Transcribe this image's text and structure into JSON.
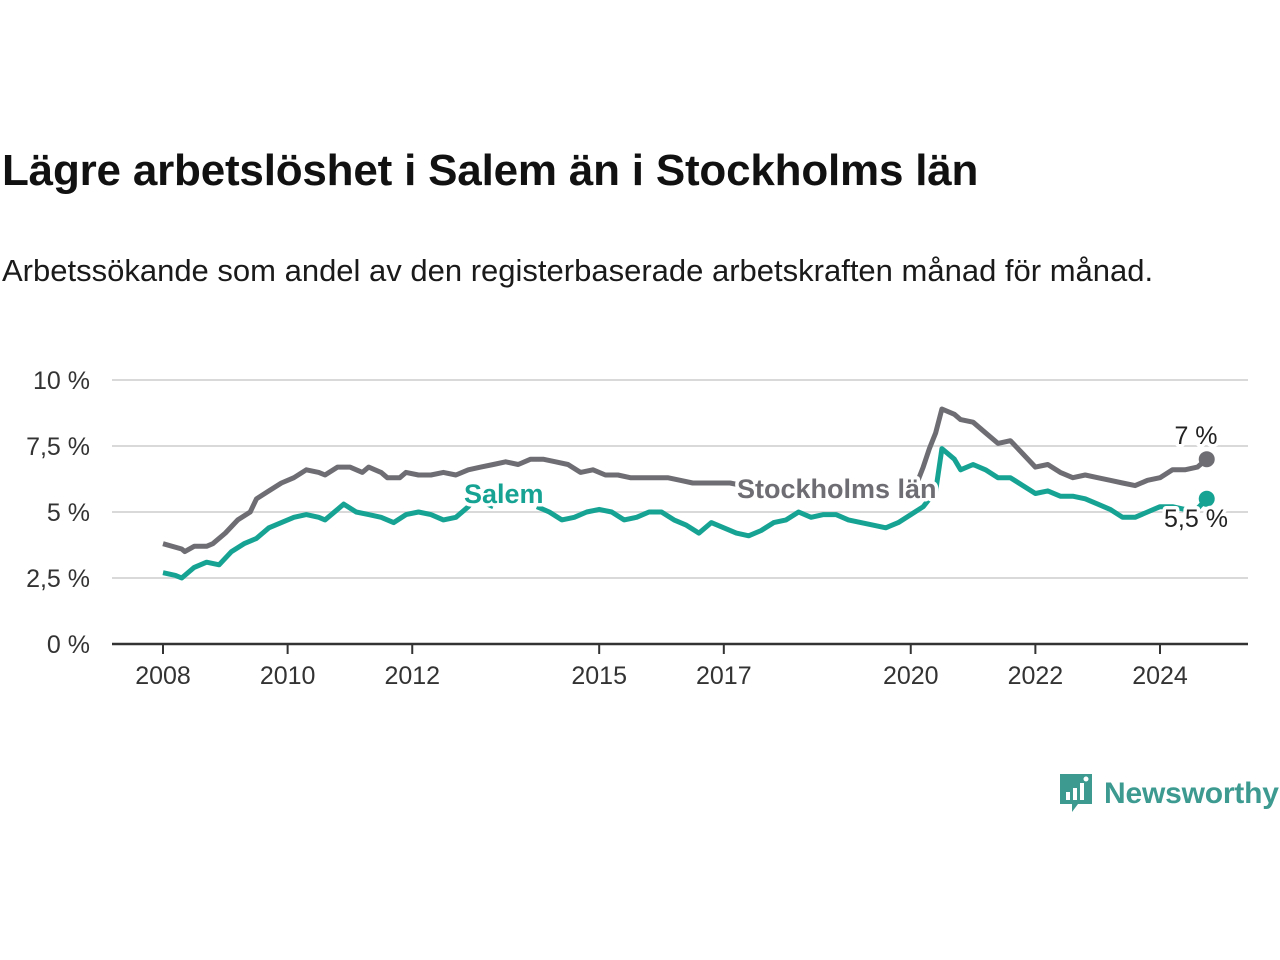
{
  "header": {
    "title": "Lägre arbetslöshet i Salem än i Stockholms län",
    "subtitle": "Arbetssökande som andel av den registerbaserade arbetskraften månad för månad."
  },
  "branding": {
    "name": "Newsworthy",
    "icon": "newsworthy-chart-bubble-icon",
    "color": "#3c9a91"
  },
  "chart_data": {
    "type": "line",
    "title": "Lägre arbetslöshet i Salem än i Stockholms län",
    "subtitle": "Arbetssökande som andel av den registerbaserade arbetskraften månad för månad.",
    "xlabel": "",
    "ylabel": "",
    "ylim": [
      0,
      10
    ],
    "xlim": [
      2007.75,
      2025.65
    ],
    "yticks": [
      0,
      2.5,
      5,
      7.5,
      10
    ],
    "ytick_labels": [
      "0 %",
      "2,5 %",
      "5 %",
      "7,5 %",
      "10 %"
    ],
    "xticks": [
      2008,
      2010,
      2012,
      2015,
      2017,
      2020,
      2022,
      2024
    ],
    "xtick_labels": [
      "2008",
      "2010",
      "2012",
      "2015",
      "2017",
      "2020",
      "2022",
      "2024"
    ],
    "grid": true,
    "legend": "inline labels on lines",
    "series": [
      {
        "name": "Stockholms län",
        "color": "#6e6d73",
        "end_label": "7 %",
        "points": [
          [
            2008.0,
            3.8
          ],
          [
            2008.3,
            3.6
          ],
          [
            2008.35,
            3.5
          ],
          [
            2008.5,
            3.7
          ],
          [
            2008.7,
            3.7
          ],
          [
            2008.8,
            3.8
          ],
          [
            2009.0,
            4.2
          ],
          [
            2009.2,
            4.7
          ],
          [
            2009.4,
            5.0
          ],
          [
            2009.5,
            5.5
          ],
          [
            2009.7,
            5.8
          ],
          [
            2009.9,
            6.1
          ],
          [
            2010.1,
            6.3
          ],
          [
            2010.3,
            6.6
          ],
          [
            2010.5,
            6.5
          ],
          [
            2010.6,
            6.4
          ],
          [
            2010.8,
            6.7
          ],
          [
            2011.0,
            6.7
          ],
          [
            2011.2,
            6.5
          ],
          [
            2011.3,
            6.7
          ],
          [
            2011.5,
            6.5
          ],
          [
            2011.6,
            6.3
          ],
          [
            2011.8,
            6.3
          ],
          [
            2011.9,
            6.5
          ],
          [
            2012.1,
            6.4
          ],
          [
            2012.3,
            6.4
          ],
          [
            2012.5,
            6.5
          ],
          [
            2012.7,
            6.4
          ],
          [
            2012.9,
            6.6
          ],
          [
            2013.1,
            6.7
          ],
          [
            2013.3,
            6.8
          ],
          [
            2013.5,
            6.9
          ],
          [
            2013.7,
            6.8
          ],
          [
            2013.9,
            7.0
          ],
          [
            2014.1,
            7.0
          ],
          [
            2014.3,
            6.9
          ],
          [
            2014.5,
            6.8
          ],
          [
            2014.7,
            6.5
          ],
          [
            2014.9,
            6.6
          ],
          [
            2015.1,
            6.4
          ],
          [
            2015.3,
            6.4
          ],
          [
            2015.5,
            6.3
          ],
          [
            2015.7,
            6.3
          ],
          [
            2015.9,
            6.3
          ],
          [
            2016.1,
            6.3
          ],
          [
            2016.3,
            6.2
          ],
          [
            2016.5,
            6.1
          ],
          [
            2016.7,
            6.1
          ],
          [
            2016.9,
            6.1
          ],
          [
            2017.1,
            6.1
          ],
          [
            2017.3,
            6.0
          ]
        ],
        "points_after_label": [
          [
            2020.1,
            6.1
          ],
          [
            2020.2,
            6.7
          ],
          [
            2020.3,
            7.4
          ],
          [
            2020.4,
            8.0
          ],
          [
            2020.5,
            8.9
          ],
          [
            2020.7,
            8.7
          ],
          [
            2020.8,
            8.5
          ],
          [
            2021.0,
            8.4
          ],
          [
            2021.2,
            8.0
          ],
          [
            2021.4,
            7.6
          ],
          [
            2021.6,
            7.7
          ],
          [
            2021.8,
            7.2
          ],
          [
            2022.0,
            6.7
          ],
          [
            2022.2,
            6.8
          ],
          [
            2022.4,
            6.5
          ],
          [
            2022.6,
            6.3
          ],
          [
            2022.8,
            6.4
          ],
          [
            2023.0,
            6.3
          ],
          [
            2023.2,
            6.2
          ],
          [
            2023.4,
            6.1
          ],
          [
            2023.6,
            6.0
          ],
          [
            2023.8,
            6.2
          ],
          [
            2024.0,
            6.3
          ],
          [
            2024.2,
            6.6
          ],
          [
            2024.4,
            6.6
          ],
          [
            2024.6,
            6.7
          ],
          [
            2024.75,
            7.0
          ]
        ]
      },
      {
        "name": "Salem",
        "color": "#16a394",
        "end_label": "5,5 %",
        "points_before_label": [
          [
            2008.0,
            2.7
          ],
          [
            2008.2,
            2.6
          ],
          [
            2008.3,
            2.5
          ],
          [
            2008.5,
            2.9
          ],
          [
            2008.7,
            3.1
          ],
          [
            2008.9,
            3.0
          ],
          [
            2009.1,
            3.5
          ],
          [
            2009.3,
            3.8
          ],
          [
            2009.5,
            4.0
          ],
          [
            2009.7,
            4.4
          ],
          [
            2009.9,
            4.6
          ],
          [
            2010.1,
            4.8
          ],
          [
            2010.3,
            4.9
          ],
          [
            2010.5,
            4.8
          ],
          [
            2010.6,
            4.7
          ],
          [
            2010.8,
            5.1
          ],
          [
            2010.9,
            5.3
          ],
          [
            2011.1,
            5.0
          ],
          [
            2011.3,
            4.9
          ],
          [
            2011.5,
            4.8
          ],
          [
            2011.7,
            4.6
          ],
          [
            2011.9,
            4.9
          ],
          [
            2012.1,
            5.0
          ],
          [
            2012.3,
            4.9
          ],
          [
            2012.5,
            4.7
          ],
          [
            2012.7,
            4.8
          ],
          [
            2012.9,
            5.2
          ],
          [
            2013.0,
            5.5
          ],
          [
            2013.3,
            5.2
          ]
        ],
        "points": [
          [
            2014.0,
            5.2
          ],
          [
            2014.2,
            5.0
          ],
          [
            2014.4,
            4.7
          ],
          [
            2014.6,
            4.8
          ],
          [
            2014.8,
            5.0
          ],
          [
            2015.0,
            5.1
          ],
          [
            2015.2,
            5.0
          ],
          [
            2015.4,
            4.7
          ],
          [
            2015.6,
            4.8
          ],
          [
            2015.8,
            5.0
          ],
          [
            2016.0,
            5.0
          ],
          [
            2016.2,
            4.7
          ],
          [
            2016.4,
            4.5
          ],
          [
            2016.6,
            4.2
          ],
          [
            2016.8,
            4.6
          ],
          [
            2017.0,
            4.4
          ],
          [
            2017.2,
            4.2
          ],
          [
            2017.4,
            4.1
          ],
          [
            2017.6,
            4.3
          ],
          [
            2017.8,
            4.6
          ],
          [
            2018.0,
            4.7
          ],
          [
            2018.2,
            5.0
          ],
          [
            2018.4,
            4.8
          ],
          [
            2018.6,
            4.9
          ],
          [
            2018.8,
            4.9
          ],
          [
            2019.0,
            4.7
          ],
          [
            2019.2,
            4.6
          ],
          [
            2019.4,
            4.5
          ],
          [
            2019.6,
            4.4
          ],
          [
            2019.8,
            4.6
          ],
          [
            2020.0,
            4.9
          ],
          [
            2020.2,
            5.2
          ],
          [
            2020.4,
            5.8
          ],
          [
            2020.5,
            7.4
          ],
          [
            2020.7,
            7.0
          ],
          [
            2020.8,
            6.6
          ],
          [
            2021.0,
            6.8
          ],
          [
            2021.2,
            6.6
          ],
          [
            2021.4,
            6.3
          ],
          [
            2021.6,
            6.3
          ],
          [
            2021.8,
            6.0
          ],
          [
            2022.0,
            5.7
          ],
          [
            2022.2,
            5.8
          ],
          [
            2022.4,
            5.6
          ],
          [
            2022.6,
            5.6
          ],
          [
            2022.8,
            5.5
          ],
          [
            2023.0,
            5.3
          ],
          [
            2023.2,
            5.1
          ],
          [
            2023.4,
            4.8
          ],
          [
            2023.6,
            4.8
          ],
          [
            2023.8,
            5.0
          ],
          [
            2024.0,
            5.2
          ],
          [
            2024.2,
            5.2
          ],
          [
            2024.4,
            5.1
          ],
          [
            2024.55,
            5.0
          ],
          [
            2024.75,
            5.5
          ]
        ]
      }
    ]
  }
}
